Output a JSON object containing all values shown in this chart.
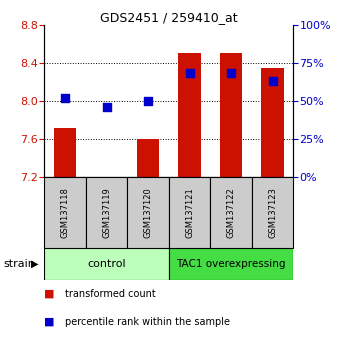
{
  "title": "GDS2451 / 259410_at",
  "samples": [
    "GSM137118",
    "GSM137119",
    "GSM137120",
    "GSM137121",
    "GSM137122",
    "GSM137123"
  ],
  "transformed_counts": [
    7.72,
    7.18,
    7.6,
    8.5,
    8.5,
    8.35
  ],
  "percentile_ranks": [
    52,
    46,
    50,
    68,
    68,
    63
  ],
  "ylim_left": [
    7.2,
    8.8
  ],
  "ylim_right": [
    0,
    100
  ],
  "yticks_left": [
    7.2,
    7.6,
    8.0,
    8.4,
    8.8
  ],
  "yticks_right": [
    0,
    25,
    50,
    75,
    100
  ],
  "bar_color": "#CC1100",
  "dot_color": "#0000CC",
  "bar_bottom": 7.2,
  "control_label": "control",
  "overexpressing_label": "TAC1 overexpressing",
  "group_label": "strain",
  "legend_red": "transformed count",
  "legend_blue": "percentile rank within the sample",
  "control_bg": "#bbffbb",
  "overexpressing_bg": "#44dd44",
  "sample_bg": "#cccccc",
  "right_axis_color": "#0000CC",
  "left_axis_color": "#CC1100",
  "title_fontsize": 9,
  "axis_fontsize": 8,
  "sample_fontsize": 6,
  "legend_fontsize": 7
}
